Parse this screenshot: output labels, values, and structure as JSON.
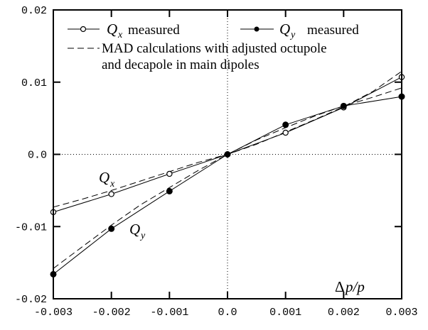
{
  "chart_data": {
    "type": "line",
    "title": "",
    "xlabel": "Δp/p",
    "ylabel": "",
    "xlim": [
      -0.003,
      0.003
    ],
    "ylim": [
      -0.02,
      0.02
    ],
    "x_ticks": [
      "-0.003",
      "-0.002",
      "-0.001",
      "0.0",
      "0.001",
      "0.002",
      "0.003"
    ],
    "y_ticks": [
      "-0.02",
      "-0.01",
      "0.0",
      "0.01",
      "0.02"
    ],
    "grid": false,
    "zero_lines": "dotted",
    "legend_position": "top-left",
    "series": [
      {
        "name": "Q_x measured",
        "marker": "open-circle",
        "line": "solid",
        "x": [
          -0.003,
          -0.002,
          -0.001,
          0.0,
          0.001,
          0.002,
          0.003
        ],
        "y": [
          -0.008,
          -0.0055,
          -0.0027,
          0.0,
          0.003,
          0.0065,
          0.0107
        ]
      },
      {
        "name": "Q_y measured",
        "marker": "filled-circle",
        "line": "solid",
        "x": [
          -0.003,
          -0.002,
          -0.001,
          0.0,
          0.001,
          0.002,
          0.003
        ],
        "y": [
          -0.0166,
          -0.0103,
          -0.0051,
          0.0,
          0.0041,
          0.0067,
          0.008
        ]
      },
      {
        "name": "MAD calculations with adjusted octupole and decapole in main dipoles",
        "line": "dashed",
        "x": [
          -0.003,
          -0.0025,
          -0.002,
          -0.0015,
          -0.001,
          -0.0005,
          0.0,
          0.0005,
          0.001,
          0.0015,
          0.002,
          0.0025,
          0.003
        ],
        "y": [
          -0.0073,
          -0.0062,
          -0.005,
          -0.0037,
          -0.0024,
          -0.0011,
          0.0,
          0.0014,
          0.0031,
          0.0048,
          0.0066,
          0.0087,
          0.0115
        ]
      },
      {
        "name": "MAD calculations with adjusted octupole and decapole in main dipoles",
        "line": "dashed",
        "x": [
          -0.003,
          -0.0025,
          -0.002,
          -0.0015,
          -0.001,
          -0.0005,
          0.0,
          0.0005,
          0.001,
          0.0015,
          0.002,
          0.0025,
          0.003
        ],
        "y": [
          -0.0158,
          -0.0128,
          -0.0098,
          -0.007,
          -0.0046,
          -0.0022,
          0.0,
          0.002,
          0.0037,
          0.0053,
          0.0067,
          0.0079,
          0.0092
        ]
      }
    ],
    "legend": {
      "qx_symbol": "Q",
      "qx_sub": "x",
      "qx_text": "measured",
      "qy_symbol": "Q",
      "qy_sub": "y",
      "qy_text": "measured",
      "mad_line1": "MAD calculations with adjusted octupole",
      "mad_line2": "and decapole in main dipoles"
    },
    "annotations": {
      "qx_symbol": "Q",
      "qx_sub": "x",
      "qy_symbol": "Q",
      "qy_sub": "y",
      "xlabel_delta": "Δ",
      "xlabel_rest": "p/p"
    }
  }
}
